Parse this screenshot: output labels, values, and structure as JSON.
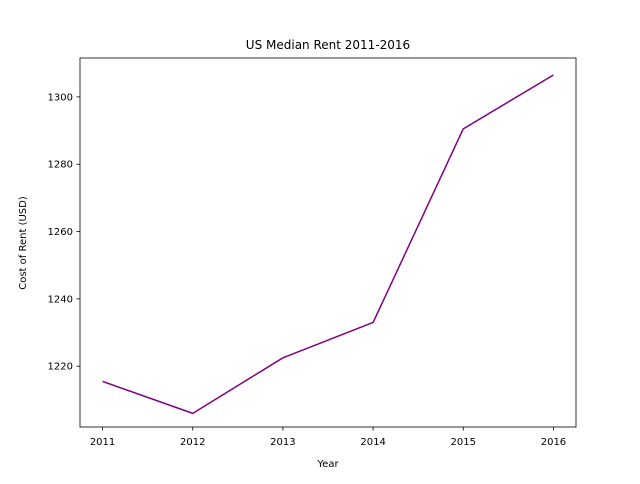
{
  "chart_data": {
    "type": "line",
    "title": "US Median Rent 2011-2016",
    "xlabel": "Year",
    "ylabel": "Cost of Rent (USD)",
    "x": [
      2011,
      2012,
      2013,
      2014,
      2015,
      2016
    ],
    "series": [
      {
        "values": [
          1215.5,
          1206,
          1222.5,
          1233,
          1290.5,
          1306.5
        ]
      }
    ],
    "xlim": [
      2010.75,
      2016.25
    ],
    "ylim": [
      1201.95,
      1311.55
    ],
    "xticks": [
      2011,
      2012,
      2013,
      2014,
      2015,
      2016
    ],
    "yticks": [
      1220,
      1240,
      1260,
      1280,
      1300
    ],
    "line_color": "#800080",
    "grid": false,
    "legend": "none"
  }
}
